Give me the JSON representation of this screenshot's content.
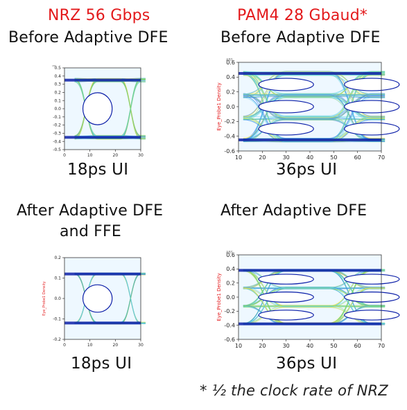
{
  "columns": [
    {
      "title": "NRZ 56 Gbps",
      "subtitle": "Before Adaptive DFE",
      "ui_label_top": "18ps UI"
    },
    {
      "title": "PAM4 28 Gbaud*",
      "subtitle": "Before Adaptive DFE",
      "ui_label_top": "36ps UI"
    }
  ],
  "after": {
    "left_line1": "After Adaptive DFE",
    "left_line2": "and FFE",
    "right": "After Adaptive DFE",
    "left_ui": "18ps UI",
    "right_ui": "36ps UI"
  },
  "footnote": "* ½ the clock rate of NRZ",
  "colors": {
    "title_red": "#e3191b",
    "trace_dark": "#0b1ea8",
    "trace_blue": "#2f78e6",
    "trace_cyan": "#5fd3e8",
    "trace_green": "#7bd65a",
    "trace_yellow": "#f2e34a"
  },
  "chart_data": [
    {
      "type": "scatter",
      "title": "NRZ 56 Gbps — Before Adaptive DFE",
      "ylabel": "",
      "corner_label": "ABS",
      "xlim": [
        0,
        30
      ],
      "ylim": [
        -0.5,
        0.5
      ],
      "xticks": [
        0,
        10,
        20,
        30
      ],
      "yticks": [
        -0.5,
        -0.4,
        -0.3,
        -0.2,
        -0.1,
        0.0,
        0.1,
        0.2,
        0.3,
        0.4,
        0.5
      ],
      "levels": [
        -0.35,
        0.35
      ],
      "eye_width_ps": 18
    },
    {
      "type": "scatter",
      "title": "PAM4 28 Gbaud — Before Adaptive DFE",
      "ylabel": "Eye_Probe1 Density",
      "corner_label": "ABS",
      "xlim": [
        10,
        70
      ],
      "ylim": [
        -0.6,
        0.6
      ],
      "xticks": [
        10,
        20,
        30,
        40,
        50,
        60,
        70
      ],
      "yticks": [
        -0.6,
        -0.4,
        -0.2,
        0.0,
        0.2,
        0.4,
        0.6
      ],
      "levels": [
        -0.45,
        -0.15,
        0.15,
        0.45
      ],
      "eye_width_ps": 36
    },
    {
      "type": "scatter",
      "title": "NRZ 56 Gbps — After Adaptive DFE and FFE",
      "ylabel": "Eye_Probe1 Density",
      "corner_label": "",
      "xlim": [
        0,
        30
      ],
      "ylim": [
        -0.2,
        0.2
      ],
      "xticks": [
        0,
        10,
        20,
        30
      ],
      "yticks": [
        -0.2,
        -0.1,
        0.0,
        0.1,
        0.2
      ],
      "levels": [
        -0.12,
        0.12
      ],
      "eye_width_ps": 18
    },
    {
      "type": "scatter",
      "title": "PAM4 28 Gbaud — After Adaptive DFE",
      "ylabel": "Eye_Probe1 Density",
      "corner_label": "ABS",
      "xlim": [
        10,
        70
      ],
      "ylim": [
        -0.6,
        0.6
      ],
      "xticks": [
        10,
        20,
        30,
        40,
        50,
        60,
        70
      ],
      "yticks": [
        -0.6,
        -0.4,
        -0.2,
        0.0,
        0.2,
        0.4,
        0.6
      ],
      "levels": [
        -0.38,
        -0.13,
        0.13,
        0.38
      ],
      "eye_width_ps": 36
    }
  ]
}
